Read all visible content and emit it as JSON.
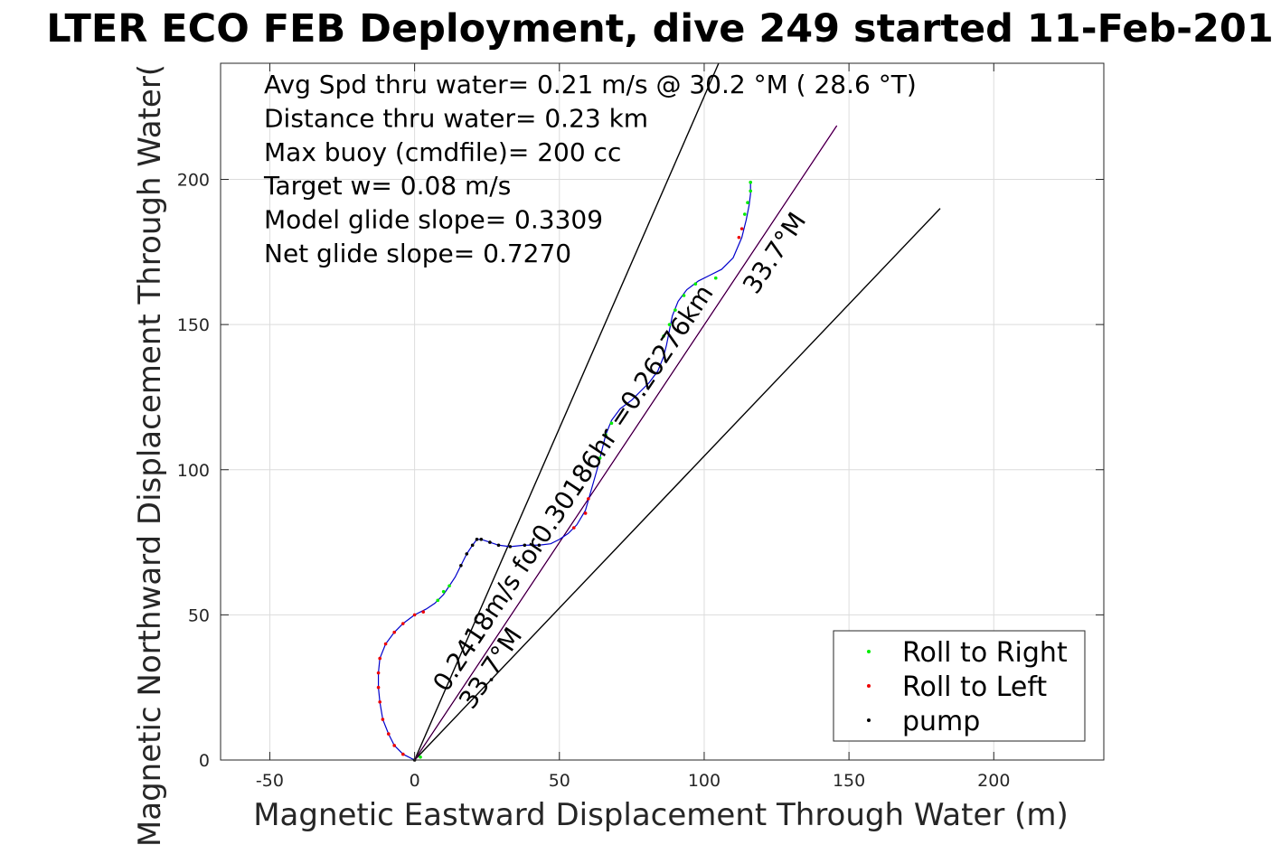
{
  "chart_data": {
    "type": "line",
    "title": "LTER ECO FEB Deployment, dive 249 started 11-Feb-201",
    "xlabel": "Magnetic Eastward Displacement Through Water (m)",
    "ylabel": "Magnetic Northward Displacement Through Water(",
    "xlim": [
      -67,
      238
    ],
    "ylim": [
      0,
      240
    ],
    "xticks": [
      -50,
      0,
      50,
      100,
      150,
      200
    ],
    "yticks": [
      0,
      50,
      100,
      150,
      200
    ],
    "xtick_labels": [
      "-50",
      "0",
      "50",
      "100",
      "150",
      "200"
    ],
    "ytick_labels": [
      "0",
      "50",
      "100",
      "150",
      "200"
    ],
    "grid": true,
    "legend_position": "bottom-right",
    "annotations": [
      "Avg Spd thru water=  0.21 m/s @  30.2 °M ( 28.6 °T)",
      "Distance thru water=  0.23 km",
      "Max buoy (cmdfile)= 200 cc",
      "Target w= 0.08 m/s",
      "Model glide slope= 0.3309",
      "Net glide slope= 0.7270"
    ],
    "rotated_labels": [
      {
        "text": "0.2418m/s for0.30186hr =0.26276km",
        "x": 11,
        "y": 23,
        "angle_deg": 56.3
      },
      {
        "text": "33.7°M",
        "x": 20,
        "y": 17,
        "angle_deg": 56.3
      },
      {
        "text": "33.7°M",
        "x": 118,
        "y": 160,
        "angle_deg": 56.3
      }
    ],
    "reference_lines": [
      {
        "name": "upper-bound",
        "color": "#000000",
        "points": [
          [
            0,
            0
          ],
          [
            105,
            240
          ]
        ]
      },
      {
        "name": "lower-bound",
        "color": "#000000",
        "points": [
          [
            0,
            0
          ],
          [
            181.5,
            190
          ]
        ]
      },
      {
        "name": "net-track",
        "color": "#cc00cc",
        "points": [
          [
            0,
            0
          ],
          [
            145.8,
            218.5
          ]
        ]
      },
      {
        "name": "net-track-black",
        "color": "#000000",
        "points": [
          [
            0,
            0
          ],
          [
            145.8,
            218.5
          ]
        ]
      }
    ],
    "track": {
      "color": "#0000cc",
      "points": [
        [
          0,
          0
        ],
        [
          -4,
          2
        ],
        [
          -7,
          5
        ],
        [
          -9,
          9
        ],
        [
          -11,
          14
        ],
        [
          -12,
          20
        ],
        [
          -12.5,
          25
        ],
        [
          -12.5,
          30
        ],
        [
          -12,
          35
        ],
        [
          -10,
          40
        ],
        [
          -7,
          44
        ],
        [
          -4,
          47
        ],
        [
          0,
          50
        ],
        [
          4,
          52
        ],
        [
          7,
          54
        ],
        [
          10,
          57
        ],
        [
          12,
          60
        ],
        [
          14,
          63
        ],
        [
          16,
          67
        ],
        [
          18,
          71
        ],
        [
          20,
          74
        ],
        [
          21.5,
          76
        ],
        [
          23,
          76
        ],
        [
          26,
          75
        ],
        [
          29,
          74
        ],
        [
          33,
          73.5
        ],
        [
          38,
          74
        ],
        [
          43,
          74
        ],
        [
          47,
          74.5
        ],
        [
          50,
          76
        ],
        [
          53,
          78
        ],
        [
          56,
          81
        ],
        [
          59,
          86
        ],
        [
          61,
          93
        ],
        [
          63,
          100
        ],
        [
          64.5,
          106
        ],
        [
          66,
          112
        ],
        [
          68,
          117
        ],
        [
          71,
          121
        ],
        [
          75,
          124
        ],
        [
          78,
          127
        ],
        [
          81,
          130
        ],
        [
          84,
          134
        ],
        [
          86,
          139
        ],
        [
          87,
          143
        ],
        [
          88,
          148
        ],
        [
          89,
          153
        ],
        [
          91,
          158
        ],
        [
          94,
          162
        ],
        [
          98,
          165
        ],
        [
          102,
          167
        ],
        [
          106,
          169
        ],
        [
          110,
          173
        ],
        [
          113,
          180
        ],
        [
          114.5,
          186
        ],
        [
          115.5,
          191
        ],
        [
          116,
          195
        ],
        [
          116,
          199
        ]
      ]
    },
    "series": [
      {
        "name": "Roll to Right",
        "color": "#00ee00",
        "points": [
          [
            2,
            1
          ],
          [
            8,
            55
          ],
          [
            10,
            58
          ],
          [
            12,
            60
          ],
          [
            64,
            104
          ],
          [
            66,
            112
          ],
          [
            68,
            116
          ],
          [
            86,
            146
          ],
          [
            88,
            150
          ],
          [
            90,
            155
          ],
          [
            93,
            160
          ],
          [
            97,
            164
          ],
          [
            104,
            166
          ],
          [
            114,
            188
          ],
          [
            115,
            192
          ],
          [
            116,
            196
          ],
          [
            116,
            199
          ]
        ]
      },
      {
        "name": "Roll to Left",
        "color": "#ee0000",
        "points": [
          [
            -4,
            2
          ],
          [
            -7,
            5
          ],
          [
            -9,
            9
          ],
          [
            -11,
            14
          ],
          [
            -12,
            20
          ],
          [
            -12.5,
            25
          ],
          [
            -12.5,
            30
          ],
          [
            -12,
            35
          ],
          [
            -10,
            40
          ],
          [
            -7,
            44
          ],
          [
            -4,
            47
          ],
          [
            0,
            50
          ],
          [
            3,
            51
          ],
          [
            55,
            80
          ],
          [
            59,
            85
          ],
          [
            60,
            90
          ],
          [
            112,
            180
          ],
          [
            113,
            183
          ]
        ]
      },
      {
        "name": "pump",
        "color": "#000000",
        "points": [
          [
            0,
            0
          ],
          [
            16,
            67
          ],
          [
            18,
            71
          ],
          [
            20,
            74
          ],
          [
            21.5,
            76
          ],
          [
            23,
            76
          ],
          [
            26,
            75
          ],
          [
            29,
            74
          ],
          [
            33,
            73.5
          ],
          [
            38,
            74
          ],
          [
            43,
            74
          ]
        ]
      }
    ]
  }
}
